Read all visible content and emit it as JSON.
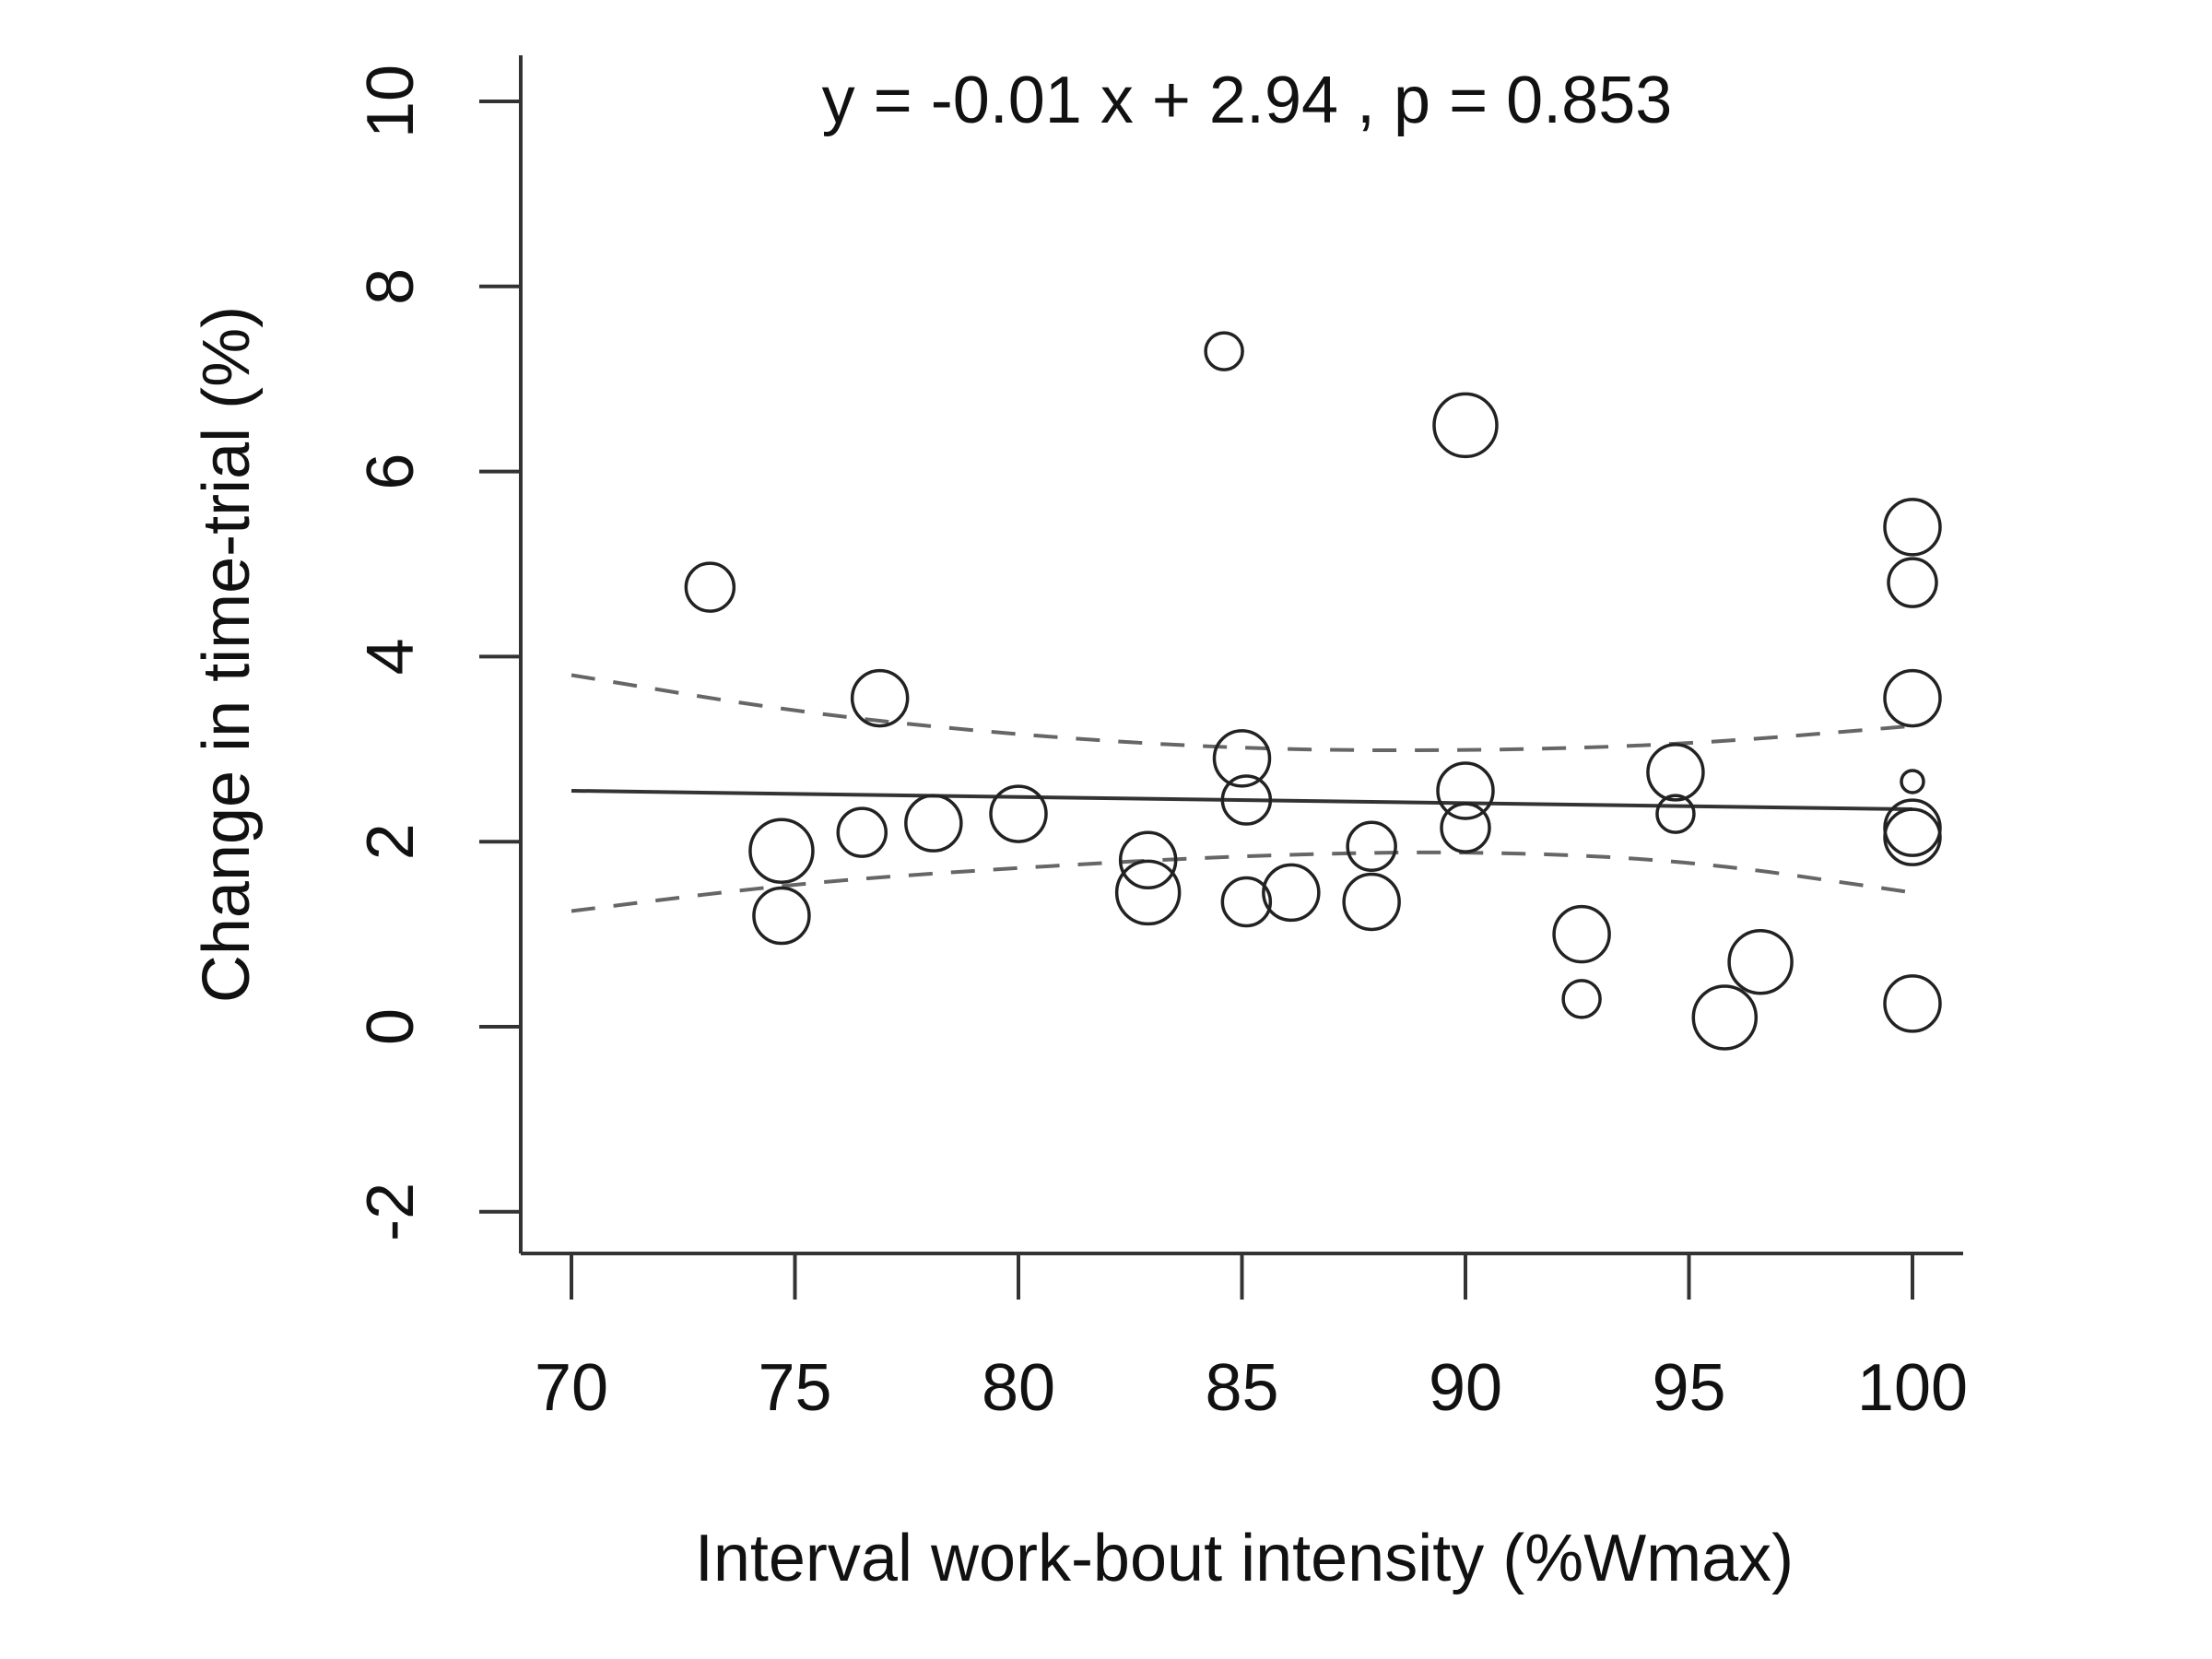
{
  "chart_data": {
    "type": "scatter",
    "title": "y =  -0.01 x +  2.94 ,  p = 0.853",
    "xlabel": "Interval work-bout intensity (%Wmax)",
    "ylabel": "Change in time-trial (%)",
    "xlim": [
      70,
      100
    ],
    "ylim": [
      -2,
      10
    ],
    "x_ticks": [
      "70",
      "75",
      "80",
      "85",
      "90",
      "95",
      "100"
    ],
    "y_ticks": [
      "-2",
      "0",
      "2",
      "4",
      "6",
      "8",
      "10"
    ],
    "grid": false,
    "legend": "none",
    "colors": {
      "marker": "#222222",
      "fit_line": "#333333",
      "ci_line": "#666666"
    },
    "fit_line": {
      "slope": -0.01,
      "intercept": 2.94,
      "p": 0.853
    },
    "confidence_band": {
      "x": [
        70,
        75,
        80,
        85,
        90,
        95,
        100
      ],
      "upper": [
        3.8,
        3.4,
        3.15,
        3.0,
        2.98,
        3.05,
        3.25
      ],
      "lower": [
        1.25,
        1.55,
        1.72,
        1.85,
        1.9,
        1.8,
        1.45
      ]
    },
    "series": [
      {
        "points": [
          {
            "x": 73.1,
            "y": 4.75,
            "size": 2
          },
          {
            "x": 74.7,
            "y": 1.9,
            "size": 4
          },
          {
            "x": 74.7,
            "y": 1.2,
            "size": 3
          },
          {
            "x": 76.5,
            "y": 2.1,
            "size": 2
          },
          {
            "x": 76.9,
            "y": 3.55,
            "size": 3
          },
          {
            "x": 78.1,
            "y": 2.2,
            "size": 3
          },
          {
            "x": 80.0,
            "y": 2.3,
            "size": 3
          },
          {
            "x": 82.9,
            "y": 1.8,
            "size": 3
          },
          {
            "x": 82.9,
            "y": 1.45,
            "size": 4
          },
          {
            "x": 84.6,
            "y": 7.3,
            "size": 1
          },
          {
            "x": 85.0,
            "y": 2.9,
            "size": 3
          },
          {
            "x": 85.1,
            "y": 2.45,
            "size": 2
          },
          {
            "x": 85.1,
            "y": 1.35,
            "size": 2
          },
          {
            "x": 86.1,
            "y": 1.45,
            "size": 3
          },
          {
            "x": 87.9,
            "y": 1.95,
            "size": 2
          },
          {
            "x": 87.9,
            "y": 1.35,
            "size": 3
          },
          {
            "x": 90.0,
            "y": 6.5,
            "size": 4
          },
          {
            "x": 90.0,
            "y": 2.55,
            "size": 3
          },
          {
            "x": 90.0,
            "y": 2.15,
            "size": 2
          },
          {
            "x": 92.6,
            "y": 1.0,
            "size": 3
          },
          {
            "x": 92.6,
            "y": 0.3,
            "size": 1
          },
          {
            "x": 94.7,
            "y": 2.75,
            "size": 3
          },
          {
            "x": 94.7,
            "y": 2.3,
            "size": 1
          },
          {
            "x": 95.8,
            "y": 0.1,
            "size": 4
          },
          {
            "x": 96.6,
            "y": 0.7,
            "size": 4
          },
          {
            "x": 100.0,
            "y": 5.4,
            "size": 3
          },
          {
            "x": 100.0,
            "y": 4.8,
            "size": 2
          },
          {
            "x": 100.0,
            "y": 3.55,
            "size": 3
          },
          {
            "x": 100.0,
            "y": 2.65,
            "size": 0
          },
          {
            "x": 100.0,
            "y": 2.15,
            "size": 3
          },
          {
            "x": 100.0,
            "y": 2.05,
            "size": 3
          },
          {
            "x": 100.0,
            "y": 0.25,
            "size": 3
          }
        ]
      }
    ]
  }
}
